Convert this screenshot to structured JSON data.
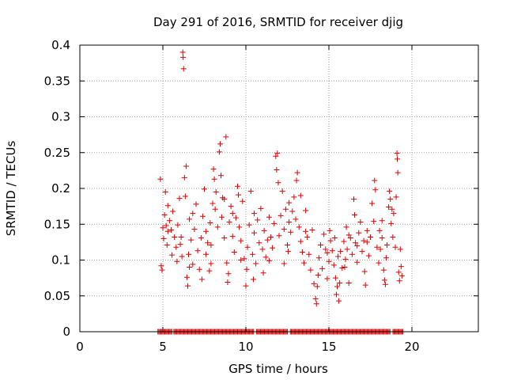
{
  "chart_data": {
    "type": "scatter",
    "title": "Day 291 of 2016, SRMTID for receiver djig",
    "xlabel": "GPS time / hours",
    "ylabel": "SRMTID / TECUs",
    "xlim": [
      0,
      24
    ],
    "ylim": [
      0,
      0.4
    ],
    "x_ticks": [
      0,
      5,
      10,
      15,
      20
    ],
    "y_ticks": [
      0,
      0.05,
      0.1,
      0.15,
      0.2,
      0.25,
      0.3,
      0.35,
      0.4
    ],
    "x_tick_labels": [
      "0",
      "5",
      "10",
      "15",
      "20"
    ],
    "y_tick_labels": [
      "0",
      "0.05",
      "0.1",
      "0.15",
      "0.2",
      "0.25",
      "0.3",
      "0.35",
      "0.4"
    ],
    "grid": true,
    "marker": "+",
    "series": [
      {
        "name": "SRMTID",
        "color": "#e00000",
        "points": [
          [
            4.85,
            0.213
          ],
          [
            4.9,
            0.092
          ],
          [
            4.95,
            0.086
          ],
          [
            5.0,
            0.145
          ],
          [
            5.05,
            0.13
          ],
          [
            5.1,
            0.163
          ],
          [
            5.15,
            0.195
          ],
          [
            5.2,
            0.148
          ],
          [
            5.25,
            0.121
          ],
          [
            5.3,
            0.176
          ],
          [
            5.4,
            0.155
          ],
          [
            5.5,
            0.142
          ],
          [
            5.55,
            0.107
          ],
          [
            5.6,
            0.168
          ],
          [
            5.7,
            0.132
          ],
          [
            5.8,
            0.118
          ],
          [
            5.85,
            0.098
          ],
          [
            5.9,
            0.149
          ],
          [
            6.0,
            0.186
          ],
          [
            6.05,
            0.122
          ],
          [
            6.1,
            0.132
          ],
          [
            6.15,
            0.105
          ],
          [
            6.2,
            0.39
          ],
          [
            6.22,
            0.383
          ],
          [
            6.25,
            0.367
          ],
          [
            6.3,
            0.215
          ],
          [
            6.35,
            0.189
          ],
          [
            6.4,
            0.231
          ],
          [
            6.45,
            0.076
          ],
          [
            6.5,
            0.064
          ],
          [
            6.55,
            0.108
          ],
          [
            6.6,
            0.157
          ],
          [
            6.7,
            0.128
          ],
          [
            6.8,
            0.094
          ],
          [
            6.9,
            0.143
          ],
          [
            7.0,
            0.178
          ],
          [
            7.1,
            0.113
          ],
          [
            7.2,
            0.087
          ],
          [
            7.3,
            0.131
          ],
          [
            7.35,
            0.073
          ],
          [
            7.4,
            0.161
          ],
          [
            7.5,
            0.199
          ],
          [
            7.6,
            0.108
          ],
          [
            7.7,
            0.124
          ],
          [
            7.8,
            0.085
          ],
          [
            7.85,
            0.152
          ],
          [
            7.9,
            0.121
          ],
          [
            8.0,
            0.179
          ],
          [
            8.05,
            0.227
          ],
          [
            8.1,
            0.213
          ],
          [
            8.15,
            0.171
          ],
          [
            8.2,
            0.195
          ],
          [
            8.3,
            0.146
          ],
          [
            8.4,
            0.251
          ],
          [
            8.45,
            0.262
          ],
          [
            8.5,
            0.218
          ],
          [
            8.55,
            0.16
          ],
          [
            8.6,
            0.187
          ],
          [
            8.7,
            0.131
          ],
          [
            8.8,
            0.272
          ],
          [
            8.85,
            0.096
          ],
          [
            8.9,
            0.069
          ],
          [
            8.95,
            0.081
          ],
          [
            9.0,
            0.153
          ],
          [
            9.1,
            0.175
          ],
          [
            9.2,
            0.133
          ],
          [
            9.3,
            0.111
          ],
          [
            9.4,
            0.159
          ],
          [
            9.5,
            0.203
          ],
          [
            9.55,
            0.191
          ],
          [
            9.6,
            0.146
          ],
          [
            9.7,
            0.127
          ],
          [
            9.8,
            0.182
          ],
          [
            9.9,
            0.102
          ],
          [
            10.0,
            0.064
          ],
          [
            10.05,
            0.087
          ],
          [
            10.1,
            0.118
          ],
          [
            10.2,
            0.149
          ],
          [
            10.3,
            0.196
          ],
          [
            10.4,
            0.108
          ],
          [
            10.45,
            0.073
          ],
          [
            10.5,
            0.138
          ],
          [
            10.6,
            0.095
          ],
          [
            10.7,
            0.156
          ],
          [
            10.8,
            0.124
          ],
          [
            10.9,
            0.172
          ],
          [
            11.0,
            0.115
          ],
          [
            11.05,
            0.082
          ],
          [
            11.1,
            0.141
          ],
          [
            11.2,
            0.104
          ],
          [
            11.3,
            0.128
          ],
          [
            11.4,
            0.099
          ],
          [
            11.5,
            0.132
          ],
          [
            11.6,
            0.117
          ],
          [
            11.7,
            0.151
          ],
          [
            11.8,
            0.245
          ],
          [
            11.85,
            0.226
          ],
          [
            11.9,
            0.249
          ],
          [
            11.95,
            0.208
          ],
          [
            12.0,
            0.134
          ],
          [
            12.1,
            0.162
          ],
          [
            12.2,
            0.196
          ],
          [
            12.3,
            0.143
          ],
          [
            12.4,
            0.171
          ],
          [
            12.5,
            0.121
          ],
          [
            12.55,
            0.112
          ],
          [
            12.6,
            0.153
          ],
          [
            12.7,
            0.139
          ],
          [
            12.8,
            0.168
          ],
          [
            12.9,
            0.188
          ],
          [
            13.0,
            0.157
          ],
          [
            13.05,
            0.211
          ],
          [
            13.1,
            0.222
          ],
          [
            13.2,
            0.146
          ],
          [
            13.3,
            0.126
          ],
          [
            13.4,
            0.111
          ],
          [
            13.5,
            0.096
          ],
          [
            13.6,
            0.169
          ],
          [
            13.7,
            0.132
          ],
          [
            13.8,
            0.108
          ],
          [
            13.9,
            0.086
          ],
          [
            14.0,
            0.142
          ],
          [
            14.1,
            0.067
          ],
          [
            14.2,
            0.046
          ],
          [
            14.25,
            0.039
          ],
          [
            14.3,
            0.063
          ],
          [
            14.35,
            0.079
          ],
          [
            14.4,
            0.103
          ],
          [
            14.5,
            0.121
          ],
          [
            14.6,
            0.088
          ],
          [
            14.7,
            0.136
          ],
          [
            14.8,
            0.115
          ],
          [
            14.9,
            0.074
          ],
          [
            15.0,
            0.098
          ],
          [
            15.05,
            0.141
          ],
          [
            15.1,
            0.127
          ],
          [
            15.2,
            0.113
          ],
          [
            15.3,
            0.093
          ],
          [
            15.35,
            0.131
          ],
          [
            15.4,
            0.075
          ],
          [
            15.45,
            0.052
          ],
          [
            15.5,
            0.063
          ],
          [
            15.55,
            0.105
          ],
          [
            15.6,
            0.043
          ],
          [
            15.65,
            0.068
          ],
          [
            15.7,
            0.112
          ],
          [
            15.8,
            0.089
          ],
          [
            15.9,
            0.126
          ],
          [
            16.0,
            0.101
          ],
          [
            16.05,
            0.146
          ],
          [
            16.1,
            0.115
          ],
          [
            16.2,
            0.068
          ],
          [
            16.3,
            0.131
          ],
          [
            16.4,
            0.108
          ],
          [
            16.5,
            0.185
          ],
          [
            16.55,
            0.163
          ],
          [
            16.6,
            0.124
          ],
          [
            16.7,
            0.097
          ],
          [
            16.8,
            0.138
          ],
          [
            16.9,
            0.153
          ],
          [
            17.0,
            0.112
          ],
          [
            17.1,
            0.127
          ],
          [
            17.15,
            0.084
          ],
          [
            17.2,
            0.065
          ],
          [
            17.3,
            0.141
          ],
          [
            17.4,
            0.106
          ],
          [
            17.5,
            0.132
          ],
          [
            17.6,
            0.179
          ],
          [
            17.7,
            0.154
          ],
          [
            17.75,
            0.211
          ],
          [
            17.8,
            0.198
          ],
          [
            17.9,
            0.118
          ],
          [
            18.0,
            0.096
          ],
          [
            18.05,
            0.141
          ],
          [
            18.1,
            0.115
          ],
          [
            18.2,
            0.131
          ],
          [
            18.3,
            0.086
          ],
          [
            18.35,
            0.072
          ],
          [
            18.4,
            0.066
          ],
          [
            18.45,
            0.103
          ],
          [
            18.5,
            0.121
          ],
          [
            18.6,
            0.174
          ],
          [
            18.65,
            0.196
          ],
          [
            18.7,
            0.185
          ],
          [
            18.75,
            0.151
          ],
          [
            18.8,
            0.171
          ],
          [
            18.85,
            0.132
          ],
          [
            18.9,
            0.165
          ],
          [
            19.0,
            0.118
          ],
          [
            19.05,
            0.188
          ],
          [
            19.1,
            0.249
          ],
          [
            19.12,
            0.241
          ],
          [
            19.15,
            0.222
          ],
          [
            19.2,
            0.083
          ],
          [
            19.25,
            0.071
          ],
          [
            19.3,
            0.115
          ],
          [
            19.35,
            0.091
          ],
          [
            19.4,
            0.078
          ],
          [
            5.3,
            0.14
          ],
          [
            6.8,
            0.165
          ],
          [
            7.6,
            0.14
          ],
          [
            8.7,
            0.185
          ],
          [
            9.2,
            0.165
          ],
          [
            10.5,
            0.165
          ],
          [
            11.4,
            0.16
          ],
          [
            12.6,
            0.18
          ],
          [
            13.3,
            0.19
          ],
          [
            13.6,
            0.14
          ],
          [
            16.2,
            0.135
          ],
          [
            17.3,
            0.125
          ],
          [
            18.2,
            0.155
          ],
          [
            12.3,
            0.095
          ],
          [
            9.7,
            0.1
          ],
          [
            7.9,
            0.095
          ],
          [
            6.6,
            0.09
          ],
          [
            16.7,
            0.12
          ],
          [
            14.9,
            0.11
          ],
          [
            15.95,
            0.09
          ]
        ]
      }
    ],
    "baseline_markers": {
      "value": 0,
      "x_range": [
        4.7,
        19.5
      ],
      "gaps": [
        [
          5.58,
          5.65
        ],
        [
          10.5,
          10.6
        ],
        [
          12.55,
          12.65
        ],
        [
          18.7,
          18.8
        ]
      ]
    }
  }
}
